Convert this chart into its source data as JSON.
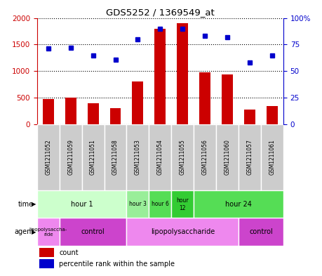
{
  "title": "GDS5252 / 1369549_at",
  "samples": [
    "GSM1211052",
    "GSM1211059",
    "GSM1211051",
    "GSM1211058",
    "GSM1211053",
    "GSM1211054",
    "GSM1211055",
    "GSM1211056",
    "GSM1211060",
    "GSM1211057",
    "GSM1211061"
  ],
  "counts": [
    470,
    500,
    390,
    300,
    800,
    1800,
    1900,
    970,
    940,
    270,
    340
  ],
  "percentiles": [
    71,
    72,
    65,
    61,
    80,
    90,
    90,
    83,
    82,
    58,
    65
  ],
  "ylim_left": [
    0,
    2000
  ],
  "ylim_right": [
    0,
    100
  ],
  "yticks_left": [
    0,
    500,
    1000,
    1500,
    2000
  ],
  "yticks_right": [
    0,
    25,
    50,
    75,
    100
  ],
  "bar_color": "#cc0000",
  "dot_color": "#0000cc",
  "gray_cell": "#cccccc",
  "time_groups": [
    {
      "label": "hour 1",
      "start": 0,
      "end": 4,
      "color": "#ccffcc"
    },
    {
      "label": "hour 3",
      "start": 4,
      "end": 5,
      "color": "#99ee99"
    },
    {
      "label": "hour 6",
      "start": 5,
      "end": 6,
      "color": "#55dd55"
    },
    {
      "label": "hour\n12",
      "start": 6,
      "end": 7,
      "color": "#33cc33"
    },
    {
      "label": "hour 24",
      "start": 7,
      "end": 11,
      "color": "#55dd55"
    }
  ],
  "agent_groups": [
    {
      "label": "lipopolysaccha-\nride",
      "start": 0,
      "end": 1,
      "color": "#ee88ee"
    },
    {
      "label": "control",
      "start": 1,
      "end": 4,
      "color": "#cc44cc"
    },
    {
      "label": "lipopolysaccharide",
      "start": 4,
      "end": 9,
      "color": "#ee88ee"
    },
    {
      "label": "control",
      "start": 9,
      "end": 11,
      "color": "#cc44cc"
    }
  ]
}
